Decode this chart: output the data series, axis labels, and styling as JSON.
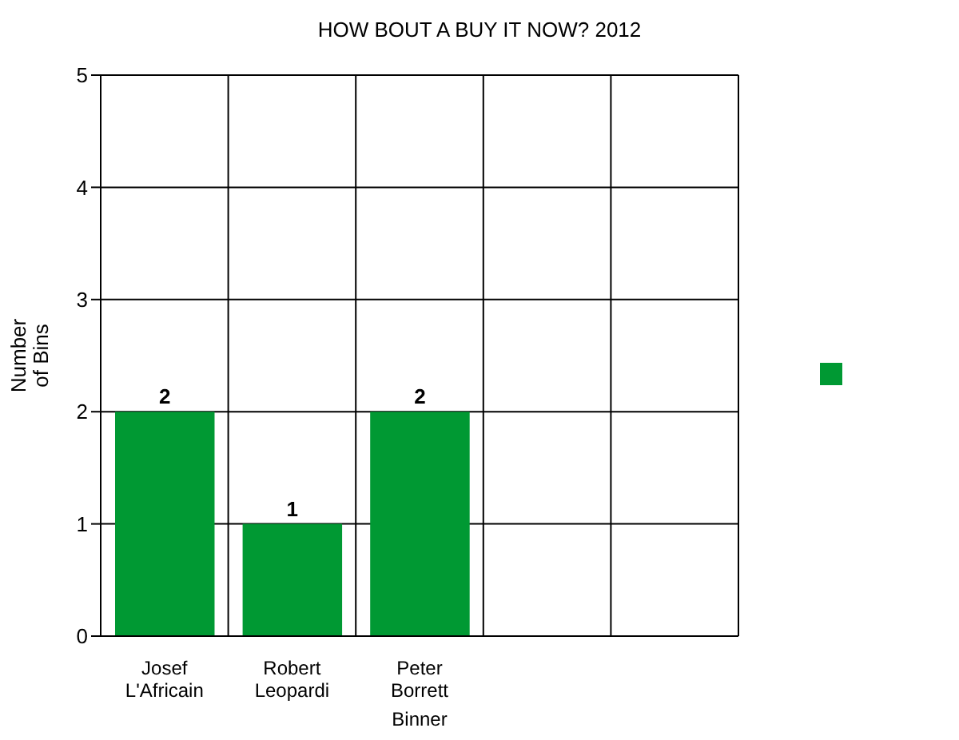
{
  "chart_data": {
    "type": "bar",
    "title": "HOW BOUT A BUY IT NOW? 2012",
    "xlabel": "Binner",
    "ylabel": "Number\nof Bins",
    "categories": [
      "Josef\nL'Africain",
      "Robert\nLeopardi",
      "Peter\nBorrett",
      null,
      null
    ],
    "series": [
      {
        "color": "#009933",
        "values": [
          2,
          1,
          2,
          null,
          null
        ]
      }
    ],
    "ylim": [
      0,
      5
    ],
    "yticks": [
      0,
      1,
      2,
      3,
      4,
      5
    ],
    "grid": true,
    "data_labels": true
  }
}
